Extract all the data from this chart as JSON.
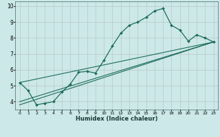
{
  "xlabel": "Humidex (Indice chaleur)",
  "xlim": [
    -0.5,
    23.5
  ],
  "ylim": [
    3.5,
    10.3
  ],
  "bg_color": "#cce8e8",
  "grid_color": "#b8c8c8",
  "line_color": "#1a6b5a",
  "xtick_labels": [
    "0",
    "1",
    "2",
    "3",
    "4",
    "5",
    "6",
    "7",
    "8",
    "9",
    "10",
    "11",
    "12",
    "13",
    "14",
    "15",
    "16",
    "17",
    "18",
    "19",
    "20",
    "21",
    "22",
    "23"
  ],
  "ytick_labels": [
    "4",
    "5",
    "6",
    "7",
    "8",
    "9",
    "10"
  ],
  "series": [
    {
      "x": [
        0,
        1,
        2,
        3,
        4,
        5,
        6,
        7,
        8,
        9,
        10,
        11,
        12,
        13,
        14,
        15,
        16,
        17,
        18,
        19,
        20,
        21,
        22,
        23
      ],
      "y": [
        5.2,
        4.7,
        3.8,
        3.9,
        4.0,
        4.6,
        5.1,
        5.85,
        5.9,
        5.8,
        6.6,
        7.5,
        8.3,
        8.8,
        9.0,
        9.3,
        9.7,
        9.85,
        8.8,
        8.5,
        7.8,
        8.2,
        8.0,
        7.75
      ],
      "marker": "D",
      "markersize": 2.0,
      "linewidth": 0.9
    },
    {
      "x": [
        0,
        23
      ],
      "y": [
        5.2,
        7.75
      ],
      "marker": null,
      "linewidth": 0.8
    },
    {
      "x": [
        0,
        23
      ],
      "y": [
        4.0,
        7.75
      ],
      "marker": null,
      "linewidth": 0.8
    },
    {
      "x": [
        0,
        23
      ],
      "y": [
        3.8,
        7.75
      ],
      "marker": null,
      "linewidth": 0.8
    }
  ]
}
